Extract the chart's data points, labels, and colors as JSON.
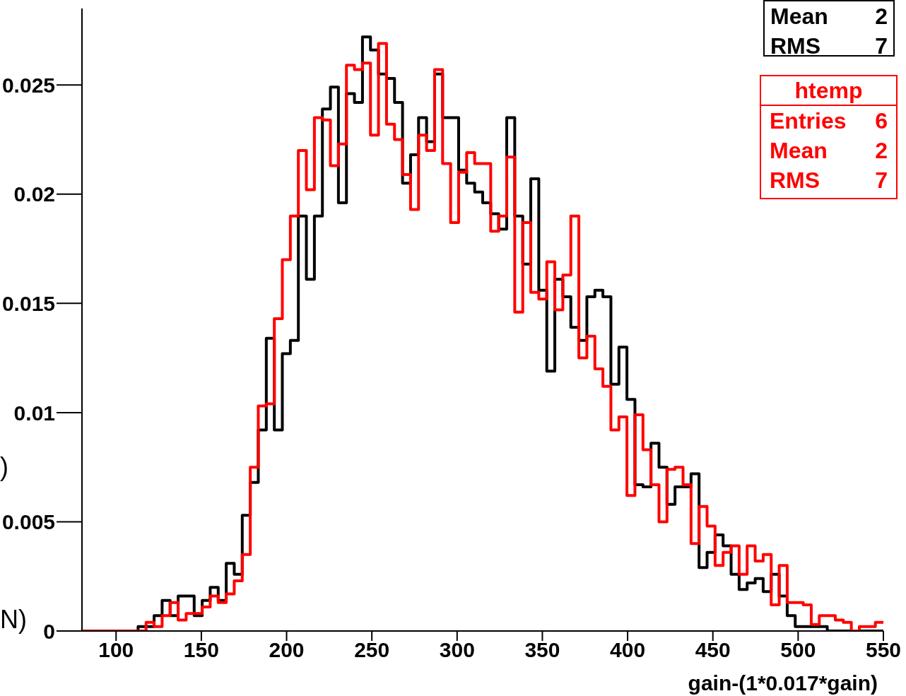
{
  "chart_data": {
    "type": "histogram",
    "xlabel": "gain-(1*0.017*gain)",
    "bins": [
      80,
      84.7,
      89.4,
      94.1,
      98.8,
      103.5,
      108.2,
      112.9,
      117.6,
      122.3,
      127,
      131.7,
      136.4,
      141.1,
      145.8,
      150.5,
      155.2,
      159.9,
      164.6,
      169.3,
      174,
      178.7,
      183.4,
      188.1,
      192.8,
      197.5,
      202.2,
      206.9,
      211.6,
      216.3,
      221,
      225.7,
      230.4,
      235.1,
      239.8,
      244.5,
      249.2,
      253.9,
      258.6,
      263.3,
      268,
      272.7,
      277.4,
      282.1,
      286.8,
      291.5,
      296.2,
      300.9,
      305.6,
      310.3,
      315,
      319.7,
      324.4,
      329.1,
      333.8,
      338.5,
      343.2,
      347.9,
      352.6,
      357.3,
      362,
      366.7,
      371.4,
      376.1,
      380.8,
      385.5,
      390.2,
      394.9,
      399.6,
      404.3,
      409,
      413.7,
      418.4,
      423.1,
      427.8,
      432.5,
      437.2,
      441.9,
      446.6,
      451.3,
      456,
      460.7,
      465.4,
      470.1,
      474.8,
      479.5,
      484.2,
      488.9,
      493.6,
      498.3,
      503,
      507.7,
      512.4,
      517.1,
      521.8,
      526.5,
      531.2,
      535.9,
      540.6,
      545.3,
      550
    ],
    "series": [
      {
        "color": "#000000",
        "values": [
          0,
          0,
          0,
          0,
          0,
          0,
          0,
          0.0002,
          0.0002,
          0.0007,
          0.0014,
          0.0007,
          0.0016,
          0.0016,
          0.0007,
          0.0014,
          0.002,
          0.0014,
          0.0031,
          0.0026,
          0.0053,
          0.0068,
          0.0092,
          0.0134,
          0.0092,
          0.0127,
          0.0133,
          0.019,
          0.0161,
          0.019,
          0.0239,
          0.0249,
          0.0196,
          0.0246,
          0.0242,
          0.0272,
          0.0266,
          0.0255,
          0.0253,
          0.0242,
          0.0205,
          0.0218,
          0.0235,
          0.0224,
          0.0255,
          0.0235,
          0.0235,
          0.0211,
          0.0205,
          0.0201,
          0.0196,
          0.0191,
          0.0184,
          0.0235,
          0.019,
          0.0168,
          0.0207,
          0.0156,
          0.0119,
          0.0161,
          0.0153,
          0.0139,
          0.0133,
          0.0153,
          0.0156,
          0.0153,
          0.0113,
          0.013,
          0.0106,
          0.0067,
          0.0066,
          0.0086,
          0.0075,
          0.0058,
          0.0066,
          0.0066,
          0.0072,
          0.0029,
          0.0036,
          0.0044,
          0.0039,
          0.0026,
          0.0019,
          0.0022,
          0.0024,
          0.0018,
          0.0026,
          0.0016,
          0.0007,
          0.0002,
          0.0002,
          0.0002,
          0.0002,
          0,
          0,
          0,
          0,
          0,
          0,
          0
        ]
      },
      {
        "color": "#ff0000",
        "values": [
          0,
          0,
          0,
          0,
          0,
          0,
          0,
          0,
          0.0004,
          0.0002,
          0.0007,
          0.0013,
          0.0005,
          0.0008,
          0.0008,
          0.0011,
          0.0016,
          0.0013,
          0.0017,
          0.0023,
          0.0035,
          0.0075,
          0.0103,
          0.0104,
          0.0143,
          0.017,
          0.019,
          0.022,
          0.0202,
          0.0235,
          0.0234,
          0.0213,
          0.0223,
          0.0259,
          0.0257,
          0.026,
          0.0227,
          0.0269,
          0.0232,
          0.0225,
          0.0209,
          0.0193,
          0.0227,
          0.022,
          0.0257,
          0.0214,
          0.0187,
          0.021,
          0.0219,
          0.0214,
          0.0214,
          0.0183,
          0.019,
          0.0217,
          0.0146,
          0.0187,
          0.0155,
          0.0152,
          0.0169,
          0.0147,
          0.0163,
          0.019,
          0.0125,
          0.0135,
          0.012,
          0.0112,
          0.0092,
          0.0098,
          0.0062,
          0.0099,
          0.0083,
          0.0067,
          0.005,
          0.0074,
          0.0075,
          0.0067,
          0.004,
          0.0057,
          0.0048,
          0.003,
          0.0036,
          0.0039,
          0.0026,
          0.0039,
          0.0032,
          0.0035,
          0.0012,
          0.003,
          0.0013,
          0.0013,
          0.0012,
          0.0003,
          0.0007,
          0.0007,
          0.0005,
          0.0004,
          0,
          0.0002,
          0.0002,
          0.0004
        ]
      }
    ],
    "xlim": [
      80,
      550
    ],
    "xticks": [
      100,
      150,
      200,
      250,
      300,
      350,
      400,
      450,
      500,
      550
    ],
    "ylim": [
      0,
      0.0285
    ],
    "yticks": [
      0,
      0.005,
      0.01,
      0.015,
      0.02,
      0.025
    ],
    "annotations": [
      "Mean",
      "2",
      "RMS",
      "7",
      "htemp",
      "Entries",
      "6",
      "Mean",
      "2",
      "RMS",
      "7",
      ")",
      "N)"
    ]
  }
}
